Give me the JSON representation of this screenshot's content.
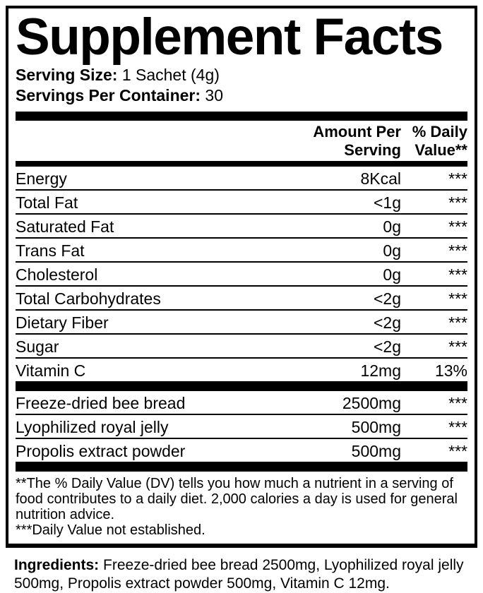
{
  "title": "Supplement Facts",
  "serving_info": {
    "serving_size_label": "Serving Size:",
    "serving_size_value": " 1 Sachet (4g)",
    "servings_per_container_label": "Servings Per Container:",
    "servings_per_container_value": " 30"
  },
  "table": {
    "header": {
      "amount_line1": "Amount Per",
      "amount_line2": "Serving",
      "dv_line1": "% Daily",
      "dv_line2": "Value**"
    },
    "nutrients": [
      {
        "name": "Energy",
        "amount": "8Kcal",
        "dv": "***"
      },
      {
        "name": "Total Fat",
        "amount": "<1g",
        "dv": "***"
      },
      {
        "name": "Saturated Fat",
        "amount": "0g",
        "dv": "***"
      },
      {
        "name": "Trans Fat",
        "amount": "0g",
        "dv": "***"
      },
      {
        "name": "Cholesterol",
        "amount": "0g",
        "dv": "***"
      },
      {
        "name": "Total Carbohydrates",
        "amount": "<2g",
        "dv": "***"
      },
      {
        "name": "Dietary Fiber",
        "amount": "<2g",
        "dv": "***"
      },
      {
        "name": "Sugar",
        "amount": "<2g",
        "dv": "***"
      },
      {
        "name": "Vitamin C",
        "amount": "12mg",
        "dv": "13%"
      }
    ],
    "botanicals": [
      {
        "name": "Freeze-dried bee bread",
        "amount": "2500mg",
        "dv": "***"
      },
      {
        "name": "Lyophilized royal jelly",
        "amount": "500mg",
        "dv": "***"
      },
      {
        "name": "Propolis extract powder",
        "amount": "500mg",
        "dv": "***"
      }
    ]
  },
  "footnotes": {
    "daily_value": "**The % Daily Value (DV) tells you how much a nutrient in a serving of food contributes to a a daily diet. 2,000 calories a day is used for general nutrition advice.",
    "daily_value_text": "**The % Daily Value (DV) tells you how much a nutrient in a serving of food contributes to a daily diet. 2,000 calories a day is used for general nutrition advice.",
    "not_established": "***Daily Value not established."
  },
  "ingredients": {
    "label": "Ingredients:",
    "text": " Freeze-dried bee bread 2500mg, Lyophilized royal jelly 500mg, Propolis extract powder 500mg, Vitamin C 12mg."
  },
  "colors": {
    "text": "#000000",
    "background": "#ffffff",
    "bars": "#000000"
  }
}
